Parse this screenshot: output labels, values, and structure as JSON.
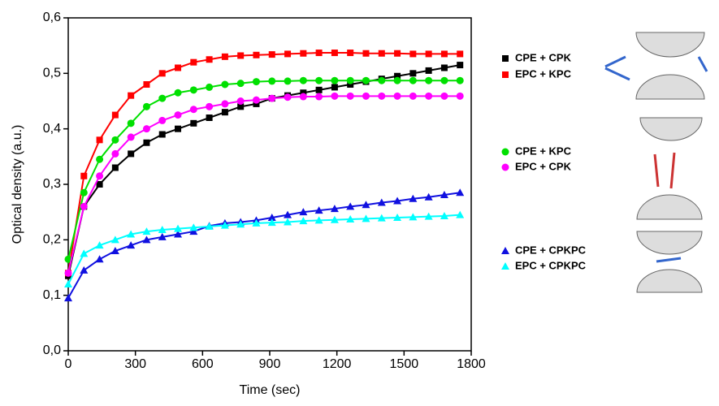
{
  "chart_data": {
    "type": "scatter",
    "xlabel": "Time (sec)",
    "ylabel": "Optical density (a.u.)",
    "xlim": [
      0,
      1800
    ],
    "xticks": [
      0,
      300,
      600,
      900,
      1200,
      1500,
      1800
    ],
    "ylim": [
      0,
      0.6
    ],
    "yticks": [
      {
        "value": 0,
        "label": "0,0"
      },
      {
        "value": 0.1,
        "label": "0,1"
      },
      {
        "value": 0.2,
        "label": "0,2"
      },
      {
        "value": 0.3,
        "label": "0,3"
      },
      {
        "value": 0.4,
        "label": "0,4"
      },
      {
        "value": 0.5,
        "label": "0,5"
      },
      {
        "value": 0.6,
        "label": "0,6"
      }
    ],
    "x": [
      0,
      70,
      140,
      210,
      280,
      350,
      420,
      490,
      560,
      630,
      700,
      770,
      840,
      910,
      980,
      1050,
      1120,
      1190,
      1260,
      1330,
      1400,
      1470,
      1540,
      1610,
      1680,
      1750
    ],
    "series": [
      {
        "name": "CPE + CPK",
        "color": "#000000",
        "marker": "square",
        "values": [
          0.135,
          0.26,
          0.3,
          0.33,
          0.355,
          0.375,
          0.39,
          0.4,
          0.41,
          0.42,
          0.43,
          0.44,
          0.445,
          0.455,
          0.46,
          0.465,
          0.47,
          0.475,
          0.48,
          0.485,
          0.49,
          0.495,
          0.5,
          0.505,
          0.51,
          0.515
        ]
      },
      {
        "name": "EPC + KPC",
        "color": "#ff0000",
        "marker": "square",
        "values": [
          0.14,
          0.315,
          0.38,
          0.425,
          0.46,
          0.48,
          0.5,
          0.51,
          0.52,
          0.525,
          0.53,
          0.532,
          0.533,
          0.534,
          0.535,
          0.536,
          0.537,
          0.537,
          0.537,
          0.536,
          0.536,
          0.536,
          0.535,
          0.535,
          0.535,
          0.535
        ]
      },
      {
        "name": "CPE + KPC",
        "color": "#00e000",
        "marker": "circle",
        "values": [
          0.165,
          0.285,
          0.345,
          0.38,
          0.41,
          0.44,
          0.455,
          0.465,
          0.47,
          0.475,
          0.48,
          0.482,
          0.485,
          0.486,
          0.486,
          0.487,
          0.487,
          0.487,
          0.487,
          0.487,
          0.487,
          0.487,
          0.487,
          0.487,
          0.487,
          0.487
        ]
      },
      {
        "name": "EPC + CPK",
        "color": "#ff00ff",
        "marker": "circle",
        "values": [
          0.14,
          0.26,
          0.315,
          0.355,
          0.385,
          0.4,
          0.415,
          0.425,
          0.435,
          0.44,
          0.445,
          0.45,
          0.452,
          0.455,
          0.457,
          0.458,
          0.458,
          0.459,
          0.459,
          0.459,
          0.459,
          0.459,
          0.459,
          0.459,
          0.459,
          0.459
        ]
      },
      {
        "name": "CPE + CPKPC",
        "color": "#1010e0",
        "marker": "triangle",
        "values": [
          0.095,
          0.145,
          0.165,
          0.18,
          0.19,
          0.2,
          0.205,
          0.21,
          0.215,
          0.225,
          0.23,
          0.232,
          0.235,
          0.24,
          0.245,
          0.25,
          0.253,
          0.256,
          0.26,
          0.263,
          0.267,
          0.27,
          0.274,
          0.277,
          0.281,
          0.285
        ]
      },
      {
        "name": "EPC + CPKPC",
        "color": "#00ffff",
        "marker": "triangle",
        "values": [
          0.12,
          0.175,
          0.19,
          0.2,
          0.21,
          0.215,
          0.218,
          0.22,
          0.222,
          0.224,
          0.226,
          0.228,
          0.23,
          0.231,
          0.232,
          0.234,
          0.235,
          0.236,
          0.237,
          0.238,
          0.239,
          0.24,
          0.241,
          0.242,
          0.243,
          0.245
        ]
      }
    ]
  }
}
